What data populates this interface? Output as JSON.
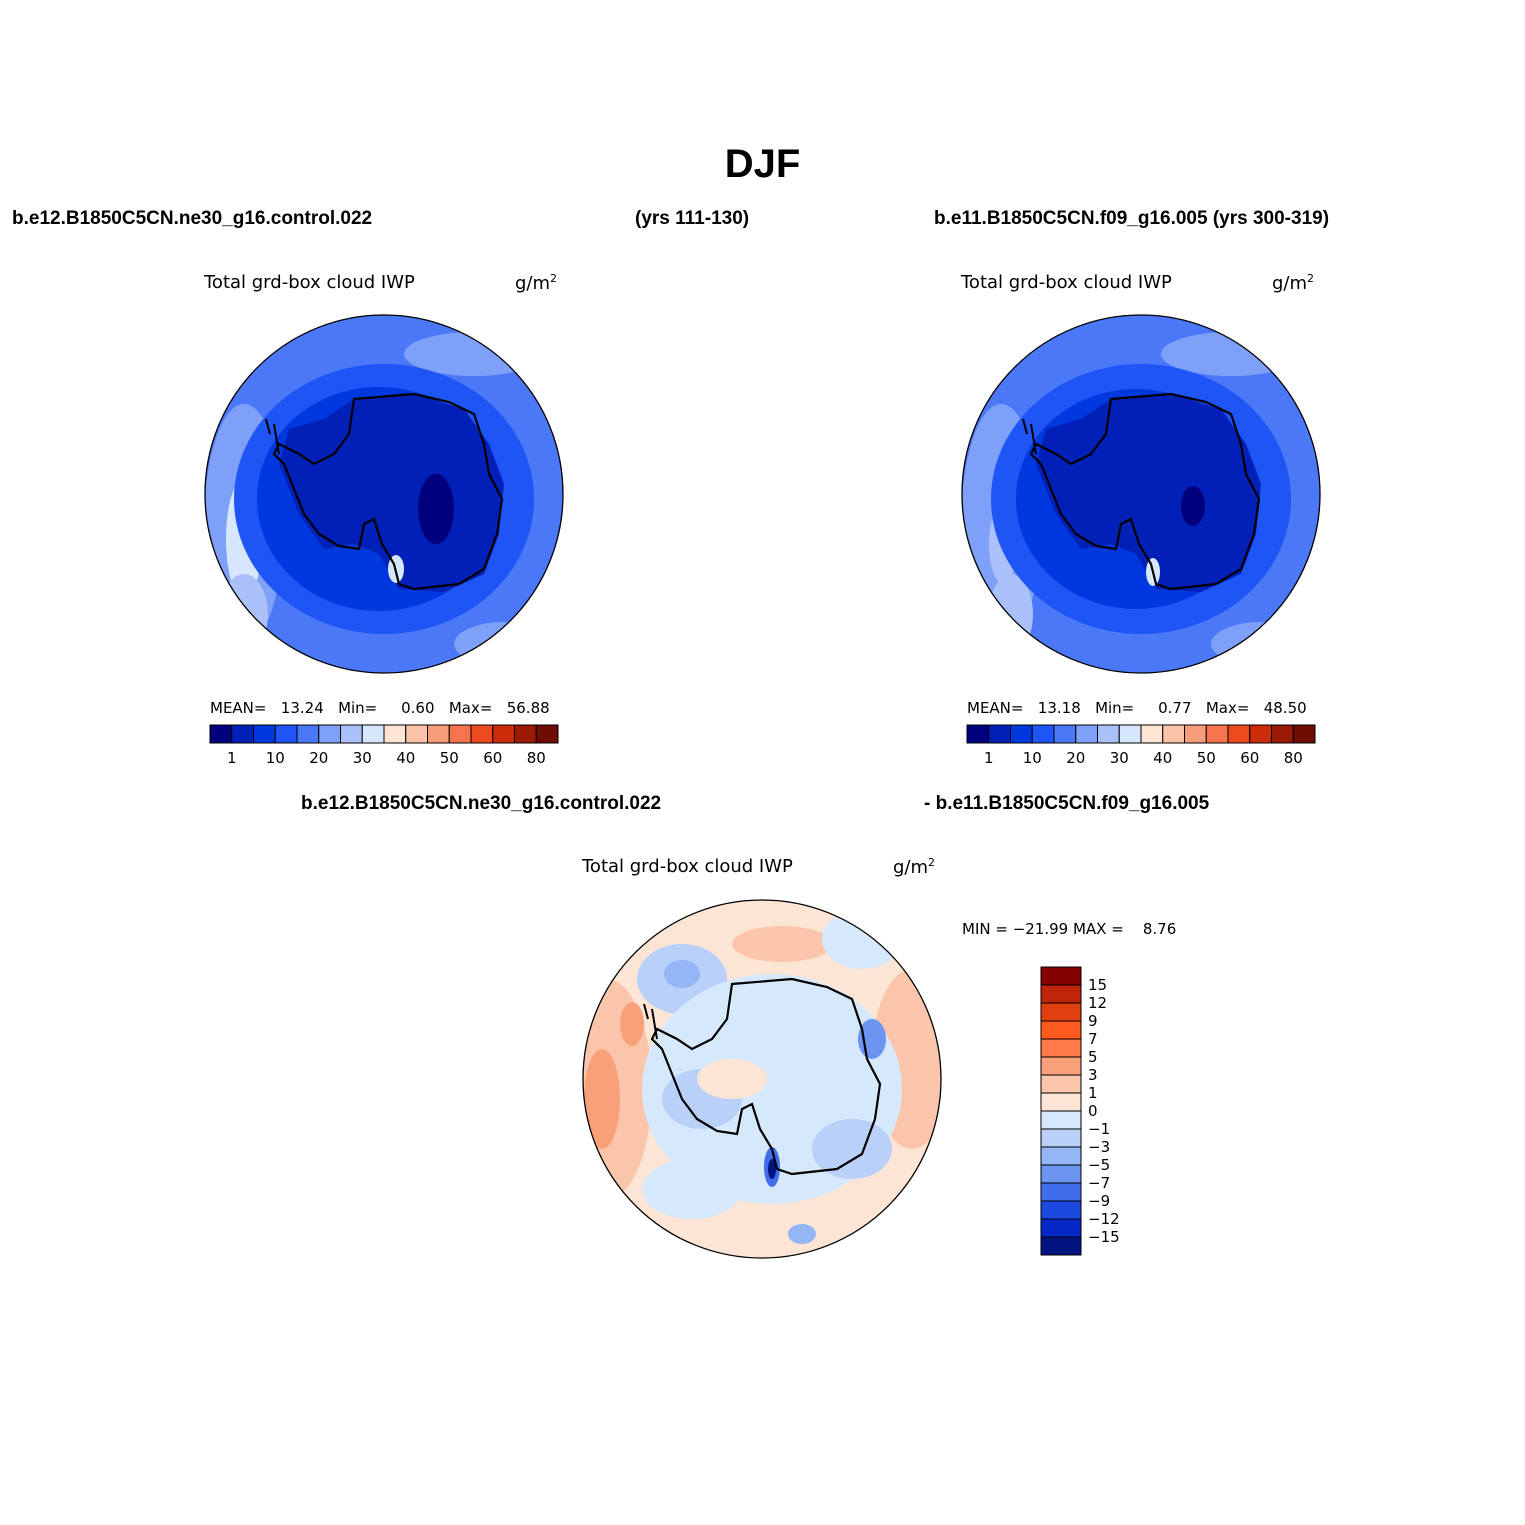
{
  "title": "DJF",
  "header": {
    "case1": "b.e12.B1850C5CN.ne30_g16.control.022",
    "years1": "(yrs 111-130)",
    "case2_years": "b.e11.B1850C5CN.f09_g16.005 (yrs 300-319)"
  },
  "panels": [
    {
      "variable": "Total grd-box cloud IWP",
      "units_base": "g/m",
      "units_exp": "2",
      "stats": {
        "mean_label": "MEAN=",
        "mean": "13.24",
        "min_label": "Min=",
        "min": "0.60",
        "max_label": "Max=",
        "max": "56.88"
      }
    },
    {
      "variable": "Total grd-box cloud IWP",
      "units_base": "g/m",
      "units_exp": "2",
      "stats": {
        "mean_label": "MEAN=",
        "mean": "13.18",
        "min_label": "Min=",
        "min": "0.77",
        "max_label": "Max=",
        "max": "48.50"
      }
    }
  ],
  "diff": {
    "case_a": "b.e12.B1850C5CN.ne30_g16.control.022",
    "case_b": "- b.e11.B1850C5CN.f09_g16.005",
    "variable": "Total grd-box cloud IWP",
    "units_base": "g/m",
    "units_exp": "2",
    "minmax_text": "MIN = −21.99 MAX =    8.76"
  },
  "colorbar_abs": {
    "colors": [
      "#00007f",
      "#0020b8",
      "#0038e0",
      "#1f55f5",
      "#4a78f7",
      "#7fa0f8",
      "#aac0f9",
      "#d6e6fc",
      "#fde4d4",
      "#fbc4a9",
      "#f79c78",
      "#f5734d",
      "#ec4a1f",
      "#cc2c0a",
      "#9a1a05",
      "#6f0d02"
    ],
    "labels": [
      "1",
      "10",
      "20",
      "30",
      "40",
      "50",
      "60",
      "80"
    ]
  },
  "colorbar_diff": {
    "colors_top_to_bottom": [
      "#850000",
      "#c0250b",
      "#e0400f",
      "#ff5a1e",
      "#ff7a46",
      "#f8a07a",
      "#fac5aa",
      "#fde5d5",
      "#d6e8fb",
      "#b9d0f8",
      "#94b5f6",
      "#6b95f1",
      "#3f6deb",
      "#1c4ae1",
      "#0827c8",
      "#00137f"
    ],
    "labels_top_to_bottom": [
      "15",
      "12",
      "9",
      "7",
      "5",
      "3",
      "1",
      "0",
      "−1",
      "−3",
      "−5",
      "−7",
      "−9",
      "−12",
      "−15"
    ]
  }
}
